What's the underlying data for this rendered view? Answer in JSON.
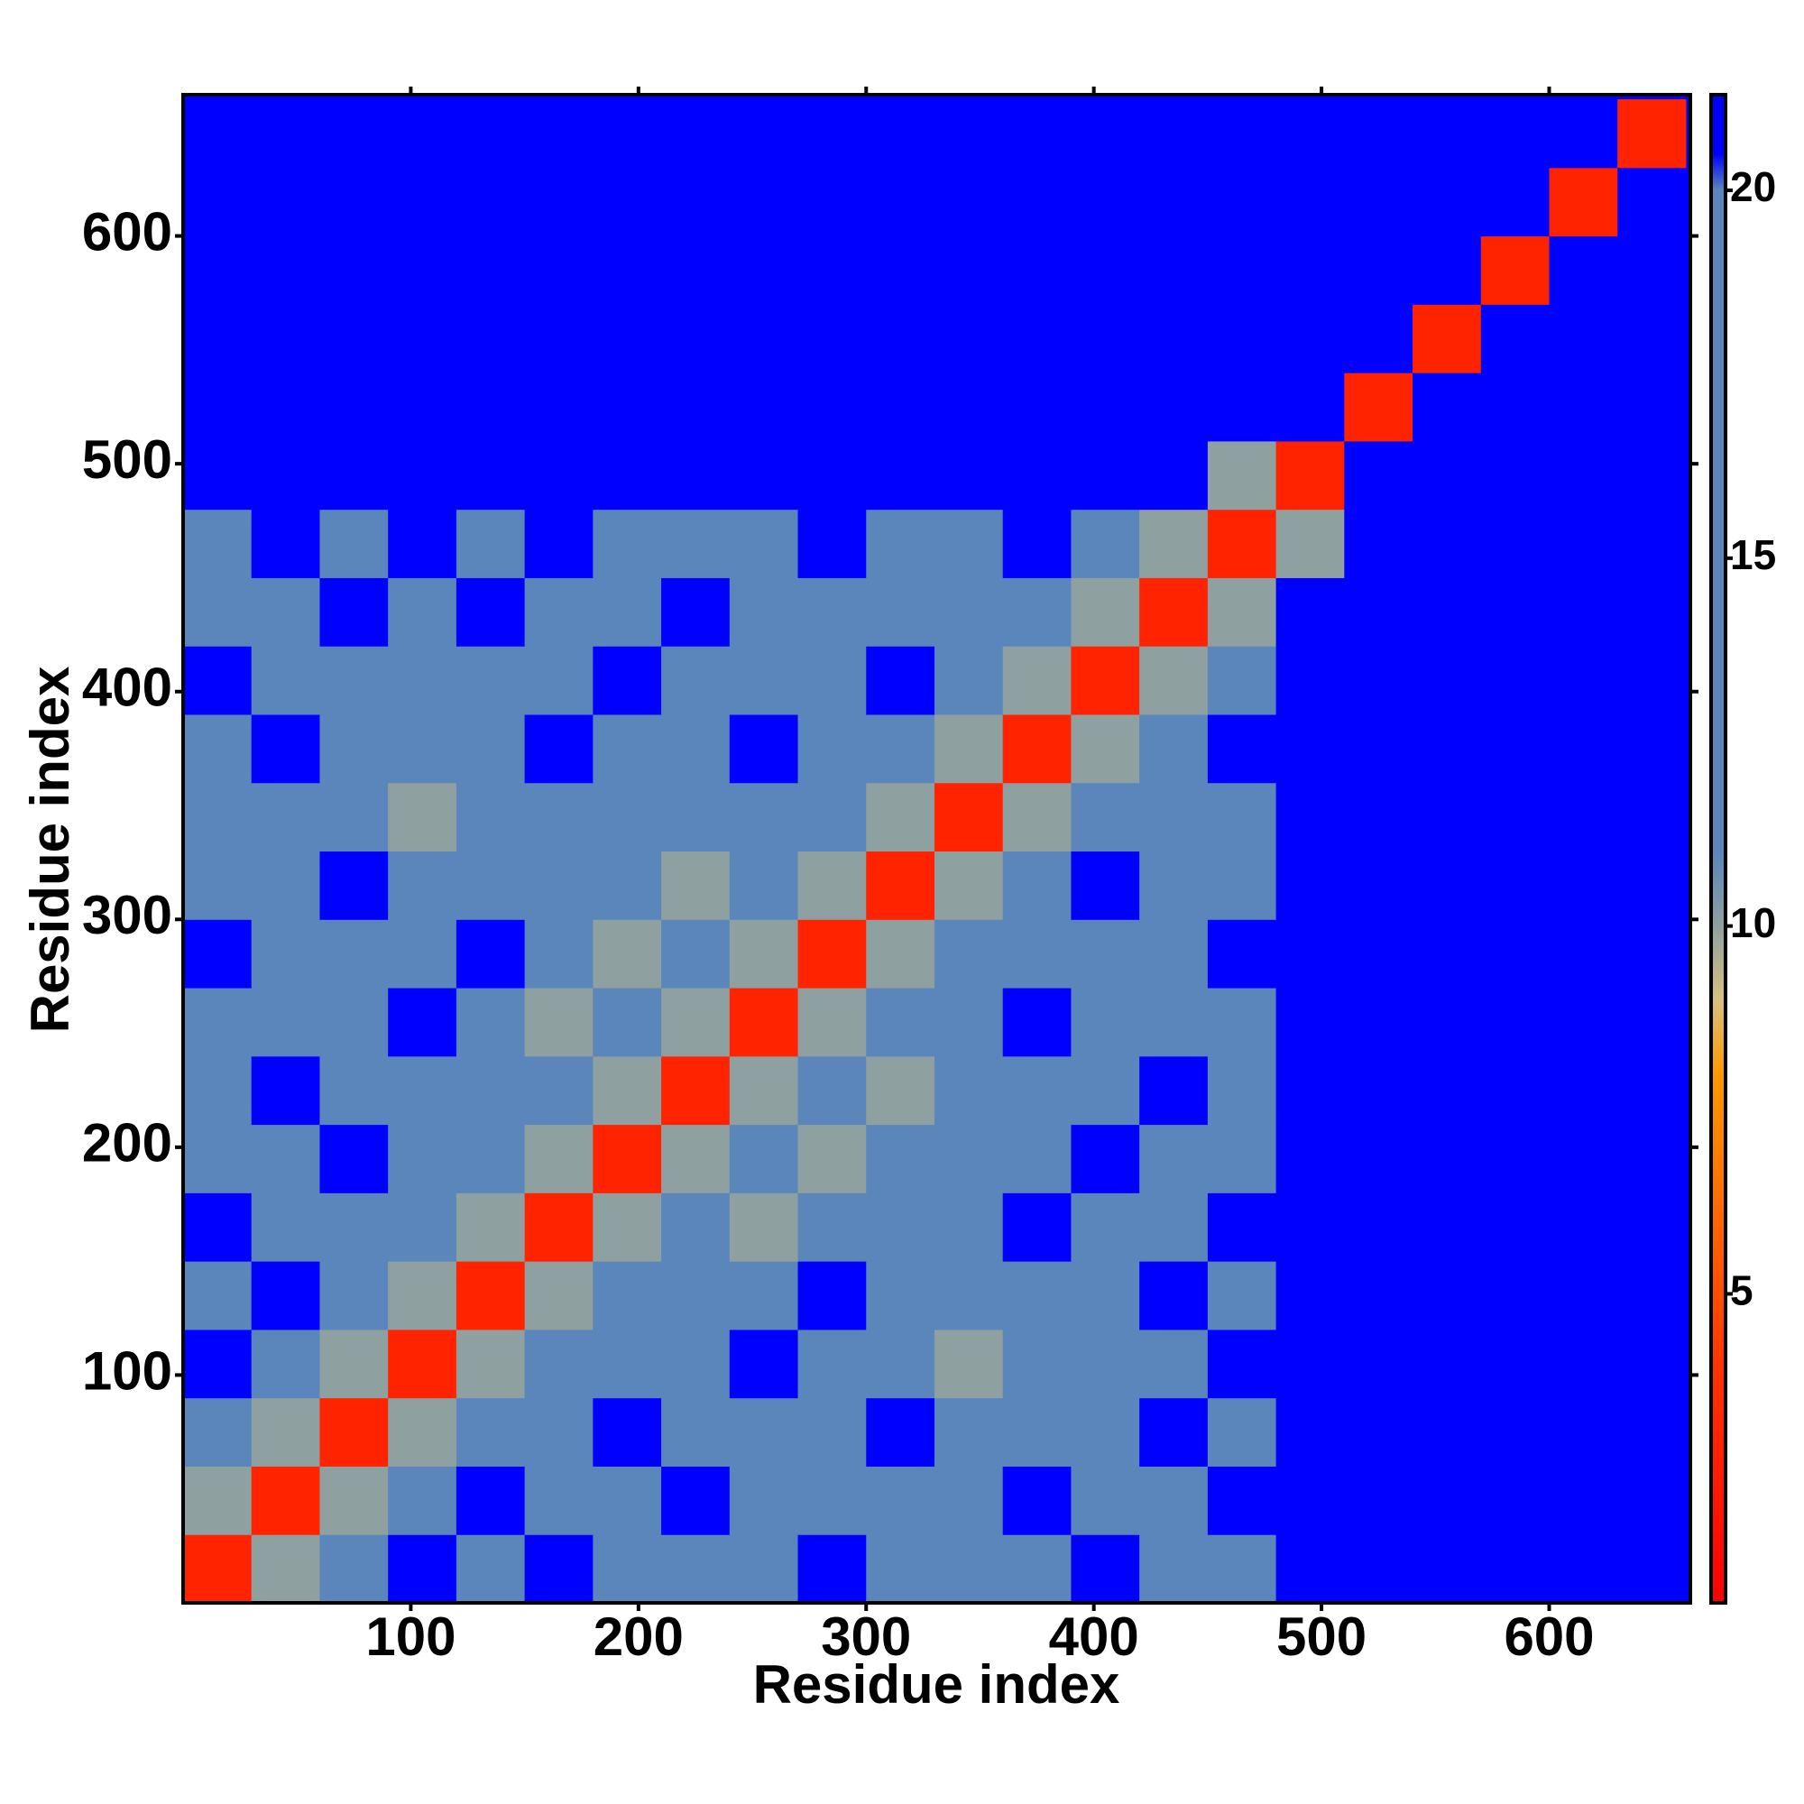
{
  "chart_data": {
    "type": "heatmap",
    "x_label": "Residue index",
    "y_label": "Residue index",
    "xlim": [
      0,
      662
    ],
    "ylim": [
      0,
      662
    ],
    "xticks": [
      100,
      200,
      300,
      400,
      500,
      600
    ],
    "yticks": [
      100,
      200,
      300,
      400,
      500,
      600
    ],
    "x_bins": [
      0,
      30,
      60,
      90,
      120,
      150,
      180,
      210,
      240,
      270,
      300,
      330,
      360,
      390,
      420,
      450,
      480,
      510,
      540,
      570,
      600,
      630,
      660
    ],
    "y_bins": [
      0,
      30,
      60,
      90,
      120,
      150,
      180,
      210,
      240,
      270,
      300,
      330,
      360,
      390,
      420,
      450,
      480,
      510,
      540,
      570,
      600,
      630,
      660
    ],
    "z": [
      [
        3,
        10,
        15,
        21,
        15,
        21,
        15,
        15,
        15,
        21,
        15,
        15,
        15,
        21,
        15,
        15,
        21,
        21,
        21,
        21,
        21,
        21
      ],
      [
        10,
        3,
        10,
        15,
        21,
        15,
        15,
        21,
        15,
        15,
        15,
        15,
        21,
        15,
        15,
        21,
        21,
        21,
        21,
        21,
        21,
        21
      ],
      [
        15,
        10,
        3,
        10,
        15,
        15,
        21,
        15,
        15,
        15,
        21,
        15,
        15,
        15,
        21,
        15,
        21,
        21,
        21,
        21,
        21,
        21
      ],
      [
        21,
        15,
        10,
        3,
        10,
        15,
        15,
        15,
        21,
        15,
        15,
        10,
        15,
        15,
        15,
        21,
        21,
        21,
        21,
        21,
        21,
        21
      ],
      [
        15,
        21,
        15,
        10,
        3,
        10,
        15,
        15,
        15,
        21,
        15,
        15,
        15,
        15,
        21,
        15,
        21,
        21,
        21,
        21,
        21,
        21
      ],
      [
        21,
        15,
        15,
        15,
        10,
        3,
        10,
        15,
        10,
        15,
        15,
        15,
        21,
        15,
        15,
        21,
        21,
        21,
        21,
        21,
        21,
        21
      ],
      [
        15,
        15,
        21,
        15,
        15,
        10,
        3,
        10,
        15,
        10,
        15,
        15,
        15,
        21,
        15,
        15,
        21,
        21,
        21,
        21,
        21,
        21
      ],
      [
        15,
        21,
        15,
        15,
        15,
        15,
        10,
        3,
        10,
        15,
        10,
        15,
        15,
        15,
        21,
        15,
        21,
        21,
        21,
        21,
        21,
        21
      ],
      [
        15,
        15,
        15,
        21,
        15,
        10,
        15,
        10,
        3,
        10,
        15,
        15,
        21,
        15,
        15,
        15,
        21,
        21,
        21,
        21,
        21,
        21
      ],
      [
        21,
        15,
        15,
        15,
        21,
        15,
        10,
        15,
        10,
        3,
        10,
        15,
        15,
        15,
        15,
        21,
        21,
        21,
        21,
        21,
        21,
        21
      ],
      [
        15,
        15,
        21,
        15,
        15,
        15,
        15,
        10,
        15,
        10,
        3,
        10,
        15,
        21,
        15,
        15,
        21,
        21,
        21,
        21,
        21,
        21
      ],
      [
        15,
        15,
        15,
        10,
        15,
        15,
        15,
        15,
        15,
        15,
        10,
        3,
        10,
        15,
        15,
        15,
        21,
        21,
        21,
        21,
        21,
        21
      ],
      [
        15,
        21,
        15,
        15,
        15,
        21,
        15,
        15,
        21,
        15,
        15,
        10,
        3,
        10,
        15,
        21,
        21,
        21,
        21,
        21,
        21,
        21
      ],
      [
        21,
        15,
        15,
        15,
        15,
        15,
        21,
        15,
        15,
        15,
        21,
        15,
        10,
        3,
        10,
        15,
        21,
        21,
        21,
        21,
        21,
        21
      ],
      [
        15,
        15,
        21,
        15,
        21,
        15,
        15,
        21,
        15,
        15,
        15,
        15,
        15,
        10,
        3,
        10,
        21,
        21,
        21,
        21,
        21,
        21
      ],
      [
        15,
        21,
        15,
        21,
        15,
        21,
        15,
        15,
        15,
        21,
        15,
        15,
        21,
        15,
        10,
        3,
        10,
        21,
        21,
        21,
        21,
        21
      ],
      [
        21,
        21,
        21,
        21,
        21,
        21,
        21,
        21,
        21,
        21,
        21,
        21,
        21,
        21,
        21,
        10,
        3,
        21,
        21,
        21,
        21,
        21
      ],
      [
        21,
        21,
        21,
        21,
        21,
        21,
        21,
        21,
        21,
        21,
        21,
        21,
        21,
        21,
        21,
        21,
        21,
        3,
        21,
        21,
        21,
        21
      ],
      [
        21,
        21,
        21,
        21,
        21,
        21,
        21,
        21,
        21,
        21,
        21,
        21,
        21,
        21,
        21,
        21,
        21,
        21,
        3,
        21,
        21,
        21
      ],
      [
        21,
        21,
        21,
        21,
        21,
        21,
        21,
        21,
        21,
        21,
        21,
        21,
        21,
        21,
        21,
        21,
        21,
        21,
        21,
        3,
        21,
        21
      ],
      [
        21,
        21,
        21,
        21,
        21,
        21,
        21,
        21,
        21,
        21,
        21,
        21,
        21,
        21,
        21,
        21,
        21,
        21,
        21,
        21,
        3,
        21
      ],
      [
        21,
        21,
        21,
        21,
        21,
        21,
        21,
        21,
        21,
        21,
        21,
        21,
        21,
        21,
        21,
        21,
        21,
        21,
        21,
        21,
        21,
        3
      ]
    ],
    "zlim": [
      0.8,
      21.3
    ],
    "zticks": [
      5,
      10,
      15,
      20
    ],
    "colorscale": [
      [
        0.8,
        "#ff0000"
      ],
      [
        4,
        "#ff3300"
      ],
      [
        8,
        "#ff9900"
      ],
      [
        9,
        "#d8c080"
      ],
      [
        10,
        "#8fa0a0"
      ],
      [
        11,
        "#5a86bb"
      ],
      [
        20,
        "#5a86bb"
      ],
      [
        20.5,
        "#0000ff"
      ],
      [
        21.3,
        "#0000ff"
      ]
    ]
  }
}
